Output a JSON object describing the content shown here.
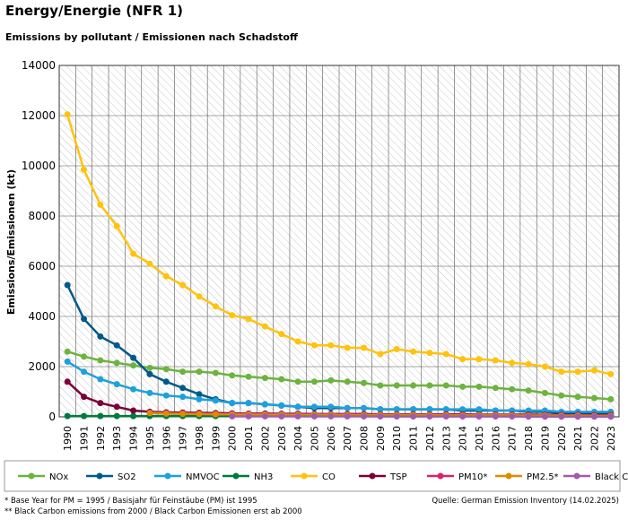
{
  "chart_data": {
    "type": "line",
    "title": "Energy/Energie (NFR 1)",
    "subtitle": "Emissions by pollutant / Emissionen nach Schadstoff",
    "y_label": "Emissions/Emissionen (kt)",
    "x": [
      "1990",
      "1991",
      "1992",
      "1993",
      "1994",
      "1995",
      "1996",
      "1997",
      "1998",
      "1999",
      "2000",
      "2001",
      "2002",
      "2003",
      "2004",
      "2005",
      "2006",
      "2007",
      "2008",
      "2009",
      "2010",
      "2011",
      "2012",
      "2013",
      "2014",
      "2015",
      "2016",
      "2017",
      "2018",
      "2019",
      "2020",
      "2021",
      "2022",
      "2023"
    ],
    "ylim": [
      0,
      14000
    ],
    "yticks": [
      0,
      2000,
      4000,
      6000,
      8000,
      10000,
      12000,
      14000
    ],
    "grid": true,
    "series": [
      {
        "name": "NOx",
        "color": "#6cb33f",
        "values": [
          2600,
          2400,
          2250,
          2150,
          2050,
          1950,
          1900,
          1800,
          1800,
          1750,
          1650,
          1600,
          1550,
          1500,
          1400,
          1400,
          1450,
          1400,
          1350,
          1250,
          1250,
          1250,
          1250,
          1250,
          1200,
          1200,
          1150,
          1100,
          1050,
          950,
          850,
          800,
          750,
          700
        ]
      },
      {
        "name": "SO2",
        "color": "#005a87",
        "values": [
          5250,
          3900,
          3200,
          2850,
          2350,
          1700,
          1400,
          1150,
          900,
          700,
          550,
          550,
          500,
          450,
          400,
          350,
          350,
          350,
          350,
          300,
          300,
          300,
          300,
          300,
          250,
          250,
          250,
          250,
          200,
          200,
          150,
          150,
          150,
          150
        ]
      },
      {
        "name": "NMVOC",
        "color": "#1ea0dc",
        "values": [
          2200,
          1800,
          1500,
          1300,
          1100,
          950,
          850,
          800,
          700,
          650,
          550,
          550,
          500,
          450,
          400,
          400,
          400,
          350,
          350,
          300,
          300,
          300,
          300,
          300,
          300,
          300,
          250,
          250,
          250,
          250,
          200,
          200,
          200,
          200
        ]
      },
      {
        "name": "NH3",
        "color": "#007a3d",
        "values": [
          30,
          30,
          30,
          30,
          30,
          30,
          30,
          30,
          30,
          30,
          30,
          30,
          30,
          30,
          30,
          30,
          30,
          30,
          30,
          30,
          30,
          30,
          30,
          30,
          25,
          25,
          25,
          25,
          25,
          25,
          20,
          20,
          20,
          20
        ]
      },
      {
        "name": "CO",
        "color": "#ffc20e",
        "values": [
          12050,
          9850,
          8450,
          7600,
          6500,
          6100,
          5600,
          5250,
          4800,
          4400,
          4050,
          3900,
          3600,
          3300,
          3000,
          2850,
          2850,
          2750,
          2750,
          2500,
          2700,
          2600,
          2550,
          2500,
          2300,
          2300,
          2250,
          2150,
          2100,
          2000,
          1800,
          1800,
          1850,
          1700
        ]
      },
      {
        "name": "TSP",
        "color": "#7a0036",
        "values": [
          1400,
          800,
          550,
          400,
          250,
          200,
          180,
          170,
          160,
          150,
          140,
          130,
          130,
          120,
          120,
          110,
          110,
          110,
          110,
          100,
          100,
          100,
          100,
          100,
          100,
          90,
          90,
          90,
          90,
          80,
          80,
          80,
          70,
          70
        ]
      },
      {
        "name": "PM10*",
        "color": "#d6246e",
        "values": [
          null,
          null,
          null,
          null,
          null,
          170,
          150,
          140,
          130,
          120,
          110,
          110,
          100,
          100,
          90,
          90,
          90,
          90,
          80,
          80,
          80,
          80,
          80,
          80,
          70,
          70,
          70,
          70,
          60,
          60,
          60,
          60,
          50,
          50
        ]
      },
      {
        "name": "PM2.5*",
        "color": "#e08a00",
        "values": [
          null,
          null,
          null,
          null,
          null,
          150,
          130,
          120,
          110,
          100,
          100,
          90,
          90,
          80,
          80,
          80,
          80,
          70,
          70,
          70,
          70,
          70,
          70,
          60,
          60,
          60,
          60,
          60,
          50,
          50,
          50,
          50,
          40,
          40
        ]
      },
      {
        "name": "Black Carbon**",
        "color": "#a05ca8",
        "values": [
          null,
          null,
          null,
          null,
          null,
          null,
          null,
          null,
          null,
          null,
          20,
          20,
          20,
          20,
          20,
          20,
          20,
          20,
          20,
          15,
          15,
          15,
          15,
          15,
          15,
          15,
          15,
          15,
          10,
          10,
          10,
          10,
          10,
          10
        ]
      }
    ],
    "notes": [
      "* Base Year for PM = 1995 / Basisjahr für Feinstäube (PM) ist 1995",
      "** Black Carbon emissions from 2000 / Black Carbon Emissionen erst ab 2000"
    ],
    "source": "Quelle: German Emission Inventory (14.02.2025)"
  }
}
